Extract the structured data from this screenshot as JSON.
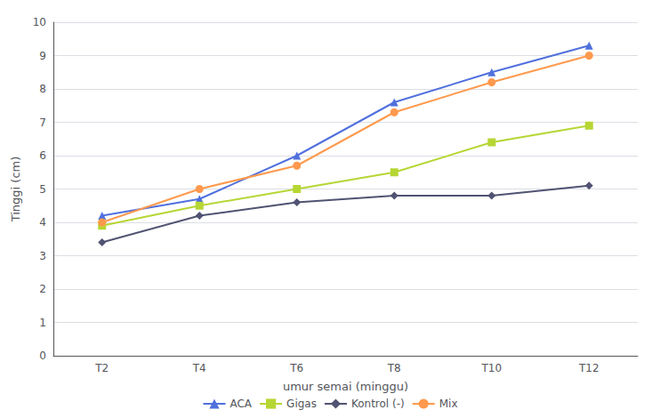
{
  "chart_data": {
    "type": "line",
    "xlabel": "umur semai (minggu)",
    "ylabel": "Tinggi (cm)",
    "categories": [
      "T2",
      "T4",
      "T6",
      "T8",
      "T10",
      "T12"
    ],
    "series": [
      {
        "name": "ACA",
        "marker": "triangle",
        "values": [
          4.2,
          4.7,
          6.0,
          7.6,
          8.5,
          9.3
        ]
      },
      {
        "name": "Gigas",
        "marker": "square",
        "values": [
          3.9,
          4.5,
          5.0,
          5.5,
          6.4,
          6.9
        ]
      },
      {
        "name": "Kontrol (-)",
        "marker": "diamond",
        "values": [
          3.4,
          4.2,
          4.6,
          4.8,
          4.8,
          5.1
        ]
      },
      {
        "name": "Mix",
        "marker": "circle",
        "values": [
          4.0,
          5.0,
          5.7,
          7.3,
          8.2,
          9.0
        ]
      }
    ],
    "ylim": [
      0,
      10
    ],
    "yticks": [
      0,
      1,
      2,
      3,
      4,
      5,
      6,
      7,
      8,
      9,
      10
    ],
    "grid": true,
    "legend": "bottom"
  }
}
